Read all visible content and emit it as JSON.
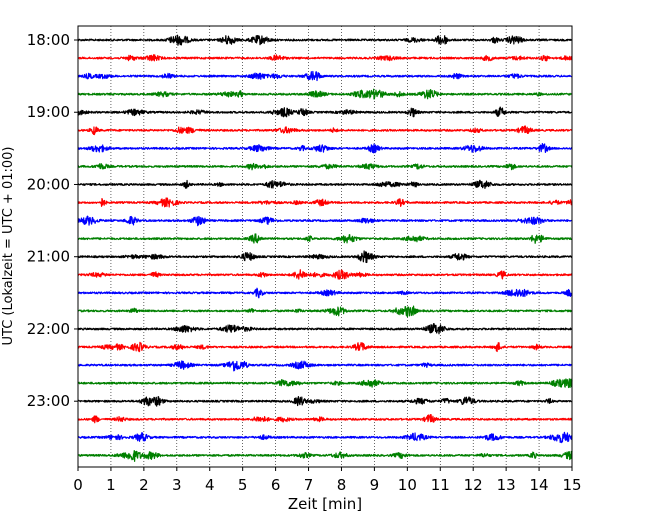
{
  "chart_data": {
    "type": "line",
    "subtype": "helicorder",
    "xlabel": "Zeit  [min]",
    "ylabel": "UTC (Lokalzeit = UTC + 01:00)",
    "xlim": [
      0,
      15
    ],
    "x_ticks": [
      0,
      1,
      2,
      3,
      4,
      5,
      6,
      7,
      8,
      9,
      10,
      11,
      12,
      13,
      14,
      15
    ],
    "x_tick_labels": [
      "0",
      "1",
      "2",
      "3",
      "4",
      "5",
      "6",
      "7",
      "8",
      "9",
      "10",
      "11",
      "12",
      "13",
      "14",
      "15"
    ],
    "y_tick_labels": [
      "18:00",
      "19:00",
      "20:00",
      "21:00",
      "22:00",
      "23:00"
    ],
    "line_minutes": 15,
    "start_time": "18:00",
    "trace_count": 24,
    "trace_colors": [
      "#000000",
      "#ff0000",
      "#0000ff",
      "#008000"
    ],
    "grid": "vertical dotted lines at each minute"
  }
}
